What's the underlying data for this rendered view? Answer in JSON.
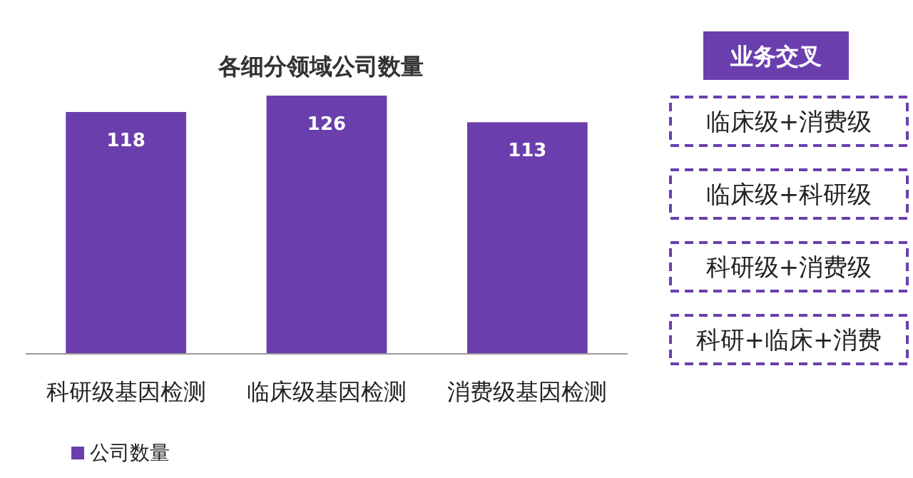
{
  "chart_data": [
    {
      "type": "bar",
      "title": "各细分领域公司数量",
      "categories": [
        "科研级基因检测",
        "临床级基因检测",
        "消费级基因检测"
      ],
      "series": [
        {
          "name": "公司数量",
          "color": "#6a3fad",
          "values": [
            118,
            126,
            113
          ]
        }
      ],
      "data_labels": true,
      "legend": "bottom left"
    },
    {
      "type": "other",
      "title": "业务交叉",
      "annotations": [
        "临床级+消费级",
        "临床级+科研级",
        "科研级+消费级",
        "科研+临床+消费"
      ]
    }
  ]
}
